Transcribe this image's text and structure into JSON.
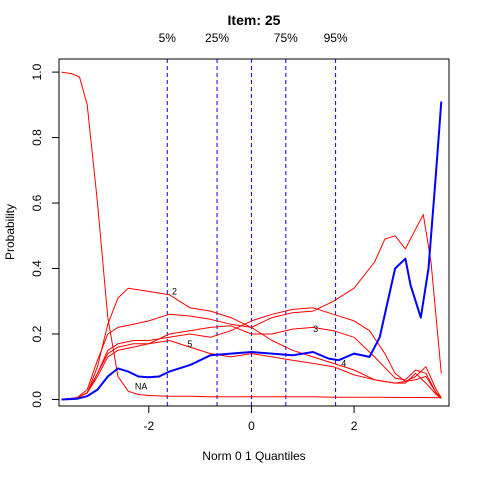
{
  "chart_data": {
    "type": "line",
    "title": "Item:  25",
    "xlabel": "Norm 0 1 Quantiles",
    "ylabel": "Probability",
    "xlim": [
      -3.75,
      3.85
    ],
    "ylim": [
      -0.02,
      1.04
    ],
    "xticks": [
      {
        "value": -2,
        "label": "-2"
      },
      {
        "value": 0,
        "label": "0"
      },
      {
        "value": 2,
        "label": "2"
      }
    ],
    "yticks": [
      {
        "value": 0.0,
        "label": "0.0"
      },
      {
        "value": 0.2,
        "label": "0.2"
      },
      {
        "value": 0.4,
        "label": "0.4"
      },
      {
        "value": 0.6,
        "label": "0.6"
      },
      {
        "value": 0.8,
        "label": "0.8"
      },
      {
        "value": 1.0,
        "label": "1.0"
      }
    ],
    "grid": false,
    "quantile_lines": [
      {
        "label": "5%",
        "x": -1.64
      },
      {
        "label": "25%",
        "x": -0.67
      },
      {
        "label": "",
        "x": 0.0
      },
      {
        "label": "75%",
        "x": 0.67
      },
      {
        "label": "95%",
        "x": 1.64
      }
    ],
    "series": [
      {
        "name": "",
        "color": "#ff0000",
        "x": [
          -3.7,
          -3.5,
          -3.35,
          -3.2,
          -3.0,
          -2.8,
          -2.6,
          -2.4,
          -2.2,
          -2.0,
          -1.6,
          -1.2,
          -0.8,
          -0.4,
          0.0,
          0.4,
          0.8,
          1.2,
          1.6,
          2.0,
          2.4,
          2.8,
          3.2,
          3.4,
          3.6,
          3.7
        ],
        "y": [
          1.0,
          0.995,
          0.985,
          0.9,
          0.6,
          0.25,
          0.07,
          0.025,
          0.015,
          0.012,
          0.01,
          0.01,
          0.008,
          0.008,
          0.008,
          0.008,
          0.008,
          0.008,
          0.007,
          0.007,
          0.007,
          0.006,
          0.006,
          0.006,
          0.005,
          0.005
        ]
      },
      {
        "name": "2",
        "label": "2",
        "label_at": [
          -1.5,
          0.33
        ],
        "color": "#ff0000",
        "x": [
          -3.7,
          -3.4,
          -3.2,
          -3.0,
          -2.8,
          -2.6,
          -2.4,
          -2.0,
          -1.6,
          -1.2,
          -0.8,
          -0.4,
          0.0,
          0.4,
          0.8,
          1.2,
          1.6,
          2.0,
          2.4,
          2.8,
          3.2,
          3.4,
          3.6,
          3.7
        ],
        "y": [
          0.0,
          0.005,
          0.02,
          0.1,
          0.23,
          0.31,
          0.34,
          0.33,
          0.32,
          0.28,
          0.27,
          0.25,
          0.22,
          0.18,
          0.15,
          0.13,
          0.11,
          0.09,
          0.06,
          0.05,
          0.06,
          0.07,
          0.02,
          0.005
        ]
      },
      {
        "name": "",
        "color": "#ff0000",
        "x": [
          -3.7,
          -3.4,
          -3.2,
          -3.0,
          -2.8,
          -2.6,
          -2.3,
          -2.0,
          -1.6,
          -1.2,
          -0.8,
          -0.4,
          0.0,
          0.4,
          0.8,
          1.2,
          1.6,
          2.0,
          2.4,
          2.6,
          2.8,
          3.0,
          3.2,
          3.35,
          3.5,
          3.7
        ],
        "y": [
          0.0,
          0.005,
          0.03,
          0.12,
          0.2,
          0.22,
          0.23,
          0.24,
          0.26,
          0.255,
          0.245,
          0.23,
          0.22,
          0.25,
          0.265,
          0.27,
          0.3,
          0.34,
          0.42,
          0.49,
          0.5,
          0.46,
          0.52,
          0.565,
          0.42,
          0.08
        ]
      },
      {
        "name": "3",
        "label": "3",
        "label_at": [
          1.25,
          0.215
        ],
        "color": "#ff0000",
        "x": [
          -3.7,
          -3.4,
          -3.2,
          -3.0,
          -2.8,
          -2.6,
          -2.3,
          -2.0,
          -1.6,
          -1.2,
          -0.8,
          -0.4,
          0.0,
          0.4,
          0.8,
          1.2,
          1.6,
          2.0,
          2.3,
          2.6,
          2.8,
          3.0,
          3.2,
          3.4,
          3.6,
          3.7
        ],
        "y": [
          0.0,
          0.005,
          0.02,
          0.08,
          0.15,
          0.17,
          0.18,
          0.18,
          0.19,
          0.2,
          0.19,
          0.21,
          0.24,
          0.26,
          0.275,
          0.28,
          0.26,
          0.24,
          0.21,
          0.14,
          0.08,
          0.055,
          0.07,
          0.1,
          0.03,
          0.005
        ]
      },
      {
        "name": "5",
        "label": "5",
        "label_at": [
          -1.2,
          0.17
        ],
        "color": "#ff0000",
        "x": [
          -3.7,
          -3.4,
          -3.2,
          -3.0,
          -2.8,
          -2.6,
          -2.3,
          -2.0,
          -1.6,
          -1.2,
          -0.8,
          -0.4,
          0.0,
          0.4,
          0.8,
          1.2,
          1.6,
          2.0,
          2.4,
          2.8,
          3.0,
          3.2,
          3.4,
          3.6,
          3.7
        ],
        "y": [
          0.0,
          0.005,
          0.02,
          0.08,
          0.14,
          0.16,
          0.17,
          0.17,
          0.2,
          0.21,
          0.22,
          0.225,
          0.2,
          0.2,
          0.215,
          0.22,
          0.21,
          0.19,
          0.13,
          0.065,
          0.06,
          0.09,
          0.08,
          0.02,
          0.004
        ]
      },
      {
        "name": "4",
        "label": "4",
        "label_at": [
          1.8,
          0.11
        ],
        "color": "#ff0000",
        "x": [
          -3.7,
          -3.4,
          -3.2,
          -3.0,
          -2.8,
          -2.6,
          -2.3,
          -2.0,
          -1.6,
          -1.2,
          -0.8,
          -0.4,
          0.0,
          0.4,
          0.8,
          1.2,
          1.6,
          2.0,
          2.4,
          2.8,
          3.0,
          3.2,
          3.4,
          3.6,
          3.7
        ],
        "y": [
          0.0,
          0.005,
          0.02,
          0.07,
          0.13,
          0.15,
          0.16,
          0.17,
          0.18,
          0.16,
          0.14,
          0.13,
          0.14,
          0.13,
          0.12,
          0.11,
          0.1,
          0.075,
          0.06,
          0.05,
          0.05,
          0.08,
          0.05,
          0.015,
          0.003
        ]
      },
      {
        "name": "NA",
        "label": "NA",
        "label_at": [
          -2.15,
          0.04
        ],
        "color": "#0000ff",
        "bold": true,
        "x": [
          -3.7,
          -3.4,
          -3.2,
          -3.0,
          -2.8,
          -2.6,
          -2.4,
          -2.2,
          -2.0,
          -1.8,
          -1.6,
          -1.2,
          -0.8,
          -0.4,
          0.0,
          0.4,
          0.8,
          1.2,
          1.5,
          1.7,
          2.0,
          2.3,
          2.5,
          2.8,
          3.0,
          3.1,
          3.3,
          3.45,
          3.6,
          3.7
        ],
        "y": [
          0.0,
          0.002,
          0.01,
          0.03,
          0.07,
          0.095,
          0.085,
          0.07,
          0.068,
          0.07,
          0.085,
          0.105,
          0.135,
          0.14,
          0.145,
          0.14,
          0.135,
          0.145,
          0.125,
          0.12,
          0.14,
          0.13,
          0.19,
          0.4,
          0.43,
          0.35,
          0.25,
          0.4,
          0.7,
          0.91
        ]
      }
    ]
  }
}
